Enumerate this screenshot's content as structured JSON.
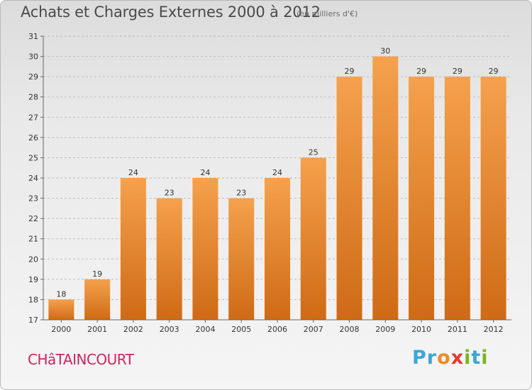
{
  "header": {
    "title": "Achats et Charges Externes 2000 à 2012",
    "subtitle": "(en milliers d'€)"
  },
  "commune": "CHâTAINCOURT",
  "logo": {
    "text": "Proxiti"
  },
  "colors": {
    "bar_top": "#f5a14d",
    "bar_bottom": "#cf6a15",
    "grid": "#bdbdbd"
  },
  "chart_data": {
    "type": "bar",
    "categories": [
      "2000",
      "2001",
      "2002",
      "2003",
      "2004",
      "2005",
      "2006",
      "2007",
      "2008",
      "2009",
      "2010",
      "2011",
      "2012"
    ],
    "values": [
      18,
      19,
      24,
      23,
      24,
      23,
      24,
      25,
      29,
      30,
      29,
      29,
      29
    ],
    "title": "Achats et Charges Externes 2000 à 2012",
    "subtitle": "(en milliers d'€)",
    "xlabel": "",
    "ylabel": "",
    "ylim": [
      17,
      31
    ],
    "yticks": [
      17,
      18,
      19,
      20,
      21,
      22,
      23,
      24,
      25,
      26,
      27,
      28,
      29,
      30,
      31
    ],
    "grid": true,
    "data_labels": true
  }
}
